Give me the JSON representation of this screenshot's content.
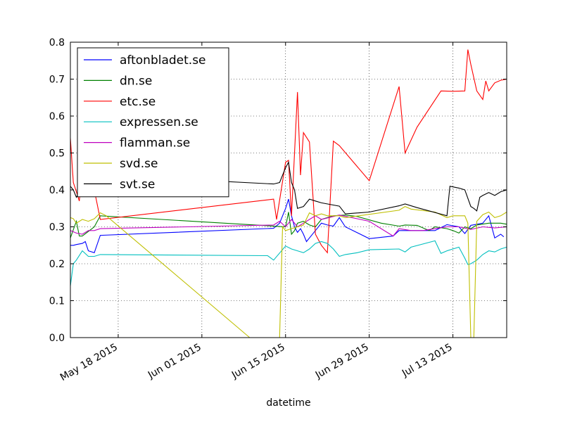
{
  "chart_data": {
    "type": "line",
    "title": "",
    "xlabel": "datetime",
    "ylabel": "",
    "ylim": [
      0,
      0.8
    ],
    "xlim": [
      "2015-05-10",
      "2015-07-22"
    ],
    "grid": true,
    "legend_position": "upper-left",
    "x_ticks": [
      {
        "date": "2015-05-18",
        "label": "May 18 2015"
      },
      {
        "date": "2015-06-01",
        "label": "Jun 01 2015"
      },
      {
        "date": "2015-06-15",
        "label": "Jun 15 2015"
      },
      {
        "date": "2015-06-29",
        "label": "Jun 29 2015"
      },
      {
        "date": "2015-07-13",
        "label": "Jul 13 2015"
      }
    ],
    "y_ticks": [
      {
        "value": 0.0,
        "label": "0.0"
      },
      {
        "value": 0.1,
        "label": "0.1"
      },
      {
        "value": 0.2,
        "label": "0.2"
      },
      {
        "value": 0.3,
        "label": "0.3"
      },
      {
        "value": 0.4,
        "label": "0.4"
      },
      {
        "value": 0.5,
        "label": "0.5"
      },
      {
        "value": 0.6,
        "label": "0.6"
      },
      {
        "value": 0.7,
        "label": "0.7"
      },
      {
        "value": 0.8,
        "label": "0.8"
      }
    ],
    "series": [
      {
        "name": "aftonbladet.se",
        "color": "#0000ff",
        "points": [
          [
            "2015-05-10",
            0.25
          ],
          [
            "2015-05-10T12",
            0.25
          ],
          [
            "2015-05-11",
            0.252
          ],
          [
            "2015-05-12",
            0.255
          ],
          [
            "2015-05-12T12",
            0.26
          ],
          [
            "2015-05-13",
            0.235
          ],
          [
            "2015-05-14",
            0.23
          ],
          [
            "2015-05-15",
            0.277
          ],
          [
            "2015-06-13",
            0.296
          ],
          [
            "2015-06-14",
            0.31
          ],
          [
            "2015-06-15",
            0.35
          ],
          [
            "2015-06-15T12",
            0.375
          ],
          [
            "2015-06-16",
            0.33
          ],
          [
            "2015-06-16T12",
            0.3
          ],
          [
            "2015-06-17",
            0.285
          ],
          [
            "2015-06-17T12",
            0.295
          ],
          [
            "2015-06-18",
            0.28
          ],
          [
            "2015-06-18T12",
            0.26
          ],
          [
            "2015-06-19",
            0.27
          ],
          [
            "2015-06-20",
            0.29
          ],
          [
            "2015-06-21",
            0.31
          ],
          [
            "2015-06-22",
            0.305
          ],
          [
            "2015-06-23",
            0.302
          ],
          [
            "2015-06-24",
            0.325
          ],
          [
            "2015-06-25",
            0.3
          ],
          [
            "2015-06-29",
            0.268
          ],
          [
            "2015-07-03",
            0.275
          ],
          [
            "2015-07-04",
            0.29
          ],
          [
            "2015-07-08",
            0.29
          ],
          [
            "2015-07-10",
            0.29
          ],
          [
            "2015-07-12",
            0.306
          ],
          [
            "2015-07-14",
            0.3
          ],
          [
            "2015-07-15",
            0.282
          ],
          [
            "2015-07-16",
            0.304
          ],
          [
            "2015-07-18",
            0.31
          ],
          [
            "2015-07-19",
            0.33
          ],
          [
            "2015-07-20",
            0.27
          ],
          [
            "2015-07-21",
            0.28
          ],
          [
            "2015-07-21T12",
            0.273
          ]
        ]
      },
      {
        "name": "dn.se",
        "color": "#008000",
        "points": [
          [
            "2015-05-10",
            0.27
          ],
          [
            "2015-05-11",
            0.315
          ],
          [
            "2015-05-11T12",
            0.275
          ],
          [
            "2015-05-12",
            0.275
          ],
          [
            "2015-05-14",
            0.3
          ],
          [
            "2015-05-15",
            0.33
          ],
          [
            "2015-06-15",
            0.3
          ],
          [
            "2015-06-15T12",
            0.34
          ],
          [
            "2015-06-16",
            0.28
          ],
          [
            "2015-06-16T12",
            0.29
          ],
          [
            "2015-06-17",
            0.31
          ],
          [
            "2015-06-18",
            0.315
          ],
          [
            "2015-06-19",
            0.305
          ],
          [
            "2015-06-20",
            0.3
          ],
          [
            "2015-06-21",
            0.32
          ],
          [
            "2015-06-23",
            0.33
          ],
          [
            "2015-06-25",
            0.332
          ],
          [
            "2015-06-27",
            0.328
          ],
          [
            "2015-07-01",
            0.31
          ],
          [
            "2015-07-04",
            0.302
          ],
          [
            "2015-07-05",
            0.305
          ],
          [
            "2015-07-07",
            0.304
          ],
          [
            "2015-07-09",
            0.29
          ],
          [
            "2015-07-10",
            0.3
          ],
          [
            "2015-07-12",
            0.295
          ],
          [
            "2015-07-13",
            0.29
          ],
          [
            "2015-07-14",
            0.283
          ],
          [
            "2015-07-15",
            0.3
          ],
          [
            "2015-07-16",
            0.295
          ],
          [
            "2015-07-17",
            0.305
          ],
          [
            "2015-07-19",
            0.31
          ],
          [
            "2015-07-21",
            0.31
          ],
          [
            "2015-07-22",
            0.307
          ]
        ]
      },
      {
        "name": "etc.se",
        "color": "#ff0000",
        "points": [
          [
            "2015-05-10",
            0.54
          ],
          [
            "2015-05-10T12",
            0.42
          ],
          [
            "2015-05-11",
            0.395
          ],
          [
            "2015-05-11T12",
            0.37
          ],
          [
            "2015-05-12",
            0.465
          ],
          [
            "2015-05-12T12",
            0.42
          ],
          [
            "2015-05-13",
            0.4
          ],
          [
            "2015-05-14",
            0.4
          ],
          [
            "2015-05-15",
            0.32
          ],
          [
            "2015-06-13",
            0.375
          ],
          [
            "2015-06-13T12",
            0.32
          ],
          [
            "2015-06-15",
            0.475
          ],
          [
            "2015-06-15T12",
            0.48
          ],
          [
            "2015-06-16",
            0.33
          ],
          [
            "2015-06-17",
            0.665
          ],
          [
            "2015-06-17T12",
            0.44
          ],
          [
            "2015-06-18",
            0.555
          ],
          [
            "2015-06-19",
            0.53
          ],
          [
            "2015-06-20",
            0.28
          ],
          [
            "2015-06-21",
            0.25
          ],
          [
            "2015-06-22",
            0.23
          ],
          [
            "2015-06-23",
            0.532
          ],
          [
            "2015-06-24",
            0.52
          ],
          [
            "2015-06-29",
            0.425
          ],
          [
            "2015-07-04",
            0.68
          ],
          [
            "2015-07-05",
            0.5
          ],
          [
            "2015-07-07",
            0.57
          ],
          [
            "2015-07-11",
            0.668
          ],
          [
            "2015-07-13",
            0.667
          ],
          [
            "2015-07-15",
            0.668
          ],
          [
            "2015-07-15T12",
            0.78
          ],
          [
            "2015-07-16",
            0.74
          ],
          [
            "2015-07-17",
            0.668
          ],
          [
            "2015-07-18",
            0.645
          ],
          [
            "2015-07-18T12",
            0.695
          ],
          [
            "2015-07-19",
            0.668
          ],
          [
            "2015-07-20",
            0.69
          ],
          [
            "2015-07-21",
            0.697
          ],
          [
            "2015-07-22",
            0.7
          ]
        ]
      },
      {
        "name": "expressen.se",
        "color": "#00bfbf",
        "points": [
          [
            "2015-05-10",
            0.14
          ],
          [
            "2015-05-10T12",
            0.2
          ],
          [
            "2015-05-11",
            0.21
          ],
          [
            "2015-05-12",
            0.235
          ],
          [
            "2015-05-13",
            0.22
          ],
          [
            "2015-05-14",
            0.22
          ],
          [
            "2015-05-15",
            0.225
          ],
          [
            "2015-06-12",
            0.222
          ],
          [
            "2015-06-13",
            0.21
          ],
          [
            "2015-06-15",
            0.248
          ],
          [
            "2015-06-16",
            0.24
          ],
          [
            "2015-06-17",
            0.235
          ],
          [
            "2015-06-18",
            0.23
          ],
          [
            "2015-06-19",
            0.24
          ],
          [
            "2015-06-20",
            0.255
          ],
          [
            "2015-06-21",
            0.26
          ],
          [
            "2015-06-22",
            0.255
          ],
          [
            "2015-06-23",
            0.24
          ],
          [
            "2015-06-24",
            0.22
          ],
          [
            "2015-06-25",
            0.225
          ],
          [
            "2015-06-27",
            0.23
          ],
          [
            "2015-06-29",
            0.238
          ],
          [
            "2015-07-04",
            0.24
          ],
          [
            "2015-07-05",
            0.232
          ],
          [
            "2015-07-06",
            0.245
          ],
          [
            "2015-07-10",
            0.262
          ],
          [
            "2015-07-11",
            0.228
          ],
          [
            "2015-07-12",
            0.235
          ],
          [
            "2015-07-14",
            0.245
          ],
          [
            "2015-07-15",
            0.215
          ],
          [
            "2015-07-15T12",
            0.198
          ],
          [
            "2015-07-16",
            0.2
          ],
          [
            "2015-07-17",
            0.21
          ],
          [
            "2015-07-18",
            0.225
          ],
          [
            "2015-07-19",
            0.235
          ],
          [
            "2015-07-20",
            0.232
          ],
          [
            "2015-07-21",
            0.24
          ],
          [
            "2015-07-22",
            0.245
          ]
        ]
      },
      {
        "name": "flamman.se",
        "color": "#bf00bf",
        "points": [
          [
            "2015-05-10",
            0.29
          ],
          [
            "2015-05-11",
            0.283
          ],
          [
            "2015-05-12",
            0.28
          ],
          [
            "2015-05-13",
            0.29
          ],
          [
            "2015-05-14",
            0.29
          ],
          [
            "2015-05-15",
            0.295
          ],
          [
            "2015-06-13",
            0.305
          ],
          [
            "2015-06-14",
            0.315
          ],
          [
            "2015-06-15",
            0.3
          ],
          [
            "2015-06-16",
            0.32
          ],
          [
            "2015-06-17",
            0.3
          ],
          [
            "2015-06-18",
            0.31
          ],
          [
            "2015-06-19",
            0.32
          ],
          [
            "2015-06-20",
            0.33
          ],
          [
            "2015-06-21",
            0.32
          ],
          [
            "2015-06-24",
            0.332
          ],
          [
            "2015-06-29",
            0.315
          ],
          [
            "2015-07-03",
            0.275
          ],
          [
            "2015-07-04",
            0.295
          ],
          [
            "2015-07-06",
            0.29
          ],
          [
            "2015-07-08",
            0.29
          ],
          [
            "2015-07-10",
            0.295
          ],
          [
            "2015-07-12",
            0.3
          ],
          [
            "2015-07-14",
            0.3
          ],
          [
            "2015-07-16",
            0.293
          ],
          [
            "2015-07-18",
            0.3
          ],
          [
            "2015-07-20",
            0.297
          ],
          [
            "2015-07-22",
            0.3
          ]
        ]
      },
      {
        "name": "svd.se",
        "color": "#bfbf00",
        "points": [
          [
            "2015-05-10",
            0.325
          ],
          [
            "2015-05-10T12",
            0.322
          ],
          [
            "2015-05-11",
            0.31
          ],
          [
            "2015-05-12",
            0.32
          ],
          [
            "2015-05-13",
            0.315
          ],
          [
            "2015-05-14",
            0.322
          ],
          [
            "2015-05-15",
            0.338
          ],
          [
            "2015-05-16",
            0.33
          ],
          [
            "2015-06-09",
            0.0
          ],
          [
            "2015-06-13",
            0.0
          ],
          [
            "2015-06-14",
            0.0
          ],
          [
            "2015-06-14T12",
            0.3
          ],
          [
            "2015-06-15",
            0.29
          ],
          [
            "2015-06-16",
            0.295
          ],
          [
            "2015-06-17",
            0.3
          ],
          [
            "2015-06-18",
            0.305
          ],
          [
            "2015-06-19",
            0.338
          ],
          [
            "2015-06-20",
            0.33
          ],
          [
            "2015-06-21",
            0.335
          ],
          [
            "2015-06-22",
            0.33
          ],
          [
            "2015-06-24",
            0.33
          ],
          [
            "2015-06-25",
            0.325
          ],
          [
            "2015-07-04",
            0.345
          ],
          [
            "2015-07-05",
            0.355
          ],
          [
            "2015-07-06",
            0.348
          ],
          [
            "2015-07-10",
            0.34
          ],
          [
            "2015-07-12",
            0.325
          ],
          [
            "2015-07-13",
            0.33
          ],
          [
            "2015-07-15",
            0.33
          ],
          [
            "2015-07-15T12",
            0.31
          ],
          [
            "2015-07-16",
            0.0
          ],
          [
            "2015-07-16T12",
            0.0
          ],
          [
            "2015-07-17",
            0.315
          ],
          [
            "2015-07-18",
            0.333
          ],
          [
            "2015-07-19",
            0.34
          ],
          [
            "2015-07-20",
            0.325
          ],
          [
            "2015-07-21",
            0.33
          ],
          [
            "2015-07-22",
            0.34
          ]
        ]
      },
      {
        "name": "svt.se",
        "color": "#000000",
        "points": [
          [
            "2015-05-10",
            0.41
          ],
          [
            "2015-05-10T12",
            0.4
          ],
          [
            "2015-05-11",
            0.38
          ],
          [
            "2015-05-12",
            0.41
          ],
          [
            "2015-05-13",
            0.44
          ],
          [
            "2015-05-15",
            0.44
          ],
          [
            "2015-06-13",
            0.416
          ],
          [
            "2015-06-14",
            0.42
          ],
          [
            "2015-06-15",
            0.46
          ],
          [
            "2015-06-15T12",
            0.475
          ],
          [
            "2015-06-16",
            0.42
          ],
          [
            "2015-06-16T12",
            0.4
          ],
          [
            "2015-06-17",
            0.35
          ],
          [
            "2015-06-18",
            0.355
          ],
          [
            "2015-06-19",
            0.375
          ],
          [
            "2015-06-20",
            0.37
          ],
          [
            "2015-06-21",
            0.365
          ],
          [
            "2015-06-24",
            0.356
          ],
          [
            "2015-06-25",
            0.335
          ],
          [
            "2015-06-29",
            0.34
          ],
          [
            "2015-07-04",
            0.357
          ],
          [
            "2015-07-05",
            0.362
          ],
          [
            "2015-07-07",
            0.352
          ],
          [
            "2015-07-12",
            0.33
          ],
          [
            "2015-07-12T12",
            0.41
          ],
          [
            "2015-07-14",
            0.405
          ],
          [
            "2015-07-15",
            0.4
          ],
          [
            "2015-07-16",
            0.355
          ],
          [
            "2015-07-16T12",
            0.35
          ],
          [
            "2015-07-17",
            0.343
          ],
          [
            "2015-07-17T12",
            0.38
          ],
          [
            "2015-07-18",
            0.385
          ],
          [
            "2015-07-19",
            0.393
          ],
          [
            "2015-07-20",
            0.385
          ],
          [
            "2015-07-21",
            0.395
          ],
          [
            "2015-07-22",
            0.4
          ]
        ]
      }
    ]
  }
}
